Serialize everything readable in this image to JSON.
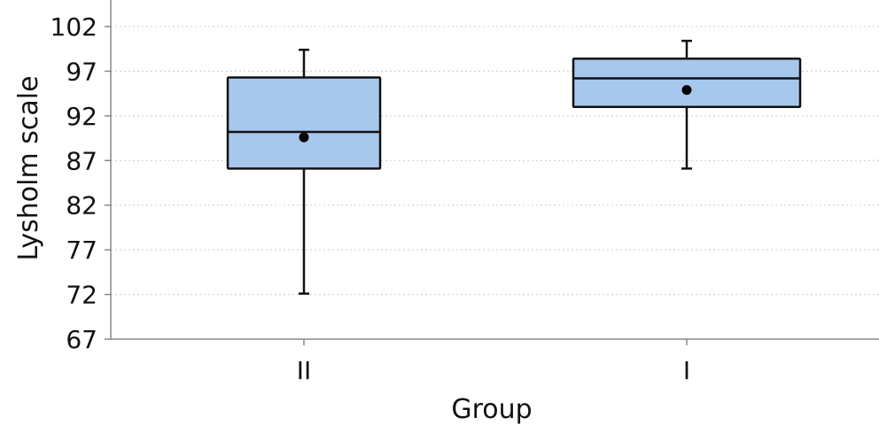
{
  "chart_data": {
    "type": "box",
    "title": "",
    "xlabel": "Group",
    "ylabel": "Lysholm scale",
    "ylim": [
      67,
      102
    ],
    "yticks": [
      67,
      72,
      77,
      82,
      87,
      92,
      97,
      102
    ],
    "grid": "horizontal dotted",
    "box_color": "#a6c8ec",
    "categories": [
      "II",
      "I"
    ],
    "boxes": [
      {
        "category": "II",
        "whisker_low": 72.1,
        "q1": 86.1,
        "median": 90.2,
        "mean": 89.6,
        "q3": 96.3,
        "whisker_high": 99.4
      },
      {
        "category": "I",
        "whisker_low": 86.1,
        "q1": 93.0,
        "median": 96.2,
        "mean": 94.9,
        "q3": 98.4,
        "whisker_high": 100.4
      }
    ]
  }
}
